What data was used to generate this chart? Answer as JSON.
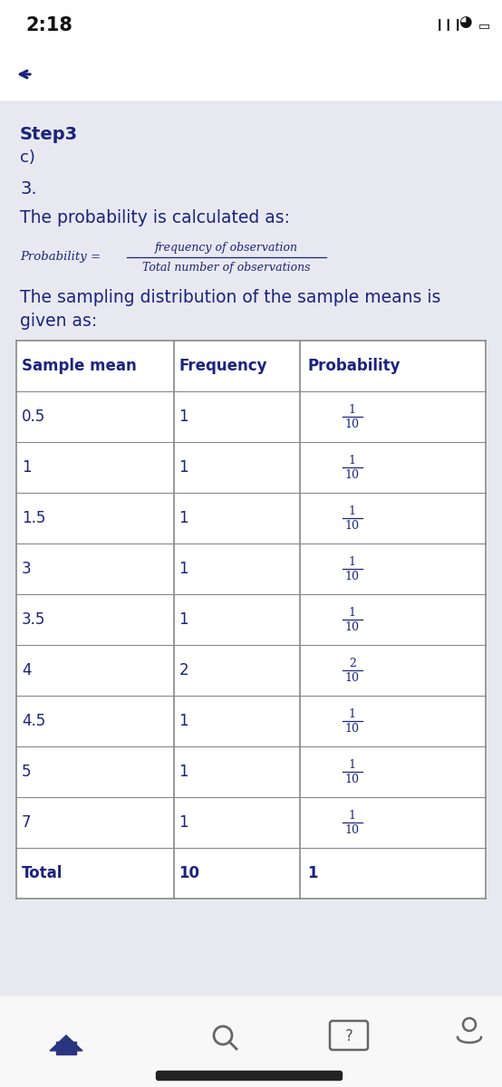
{
  "bg_color_top": "#ffffff",
  "bg_color_main": "#e8e9f0",
  "text_color": "#1a237e",
  "time_text": "2:18",
  "step_label": "Step3",
  "sub_label": "c)",
  "number_label": "3.",
  "intro_text": "The probability is calculated as:",
  "formula_left": "Probability =",
  "formula_numerator": "frequency of observation",
  "formula_denominator": "Total number of observations",
  "table_headers": [
    "Sample mean",
    "Frequency",
    "Probability"
  ],
  "table_rows": [
    [
      "0.5",
      "1",
      "1/10"
    ],
    [
      "1",
      "1",
      "1/10"
    ],
    [
      "1.5",
      "1",
      "1/10"
    ],
    [
      "3",
      "1",
      "1/10"
    ],
    [
      "3.5",
      "1",
      "1/10"
    ],
    [
      "4",
      "2",
      "2/10"
    ],
    [
      "4.5",
      "1",
      "1/10"
    ],
    [
      "5",
      "1",
      "1/10"
    ],
    [
      "7",
      "1",
      "1/10"
    ],
    [
      "Total",
      "10",
      "1"
    ]
  ],
  "border_color": "#888888",
  "table_text_color": "#1a237e",
  "nav_bg": "#f5f5f5"
}
